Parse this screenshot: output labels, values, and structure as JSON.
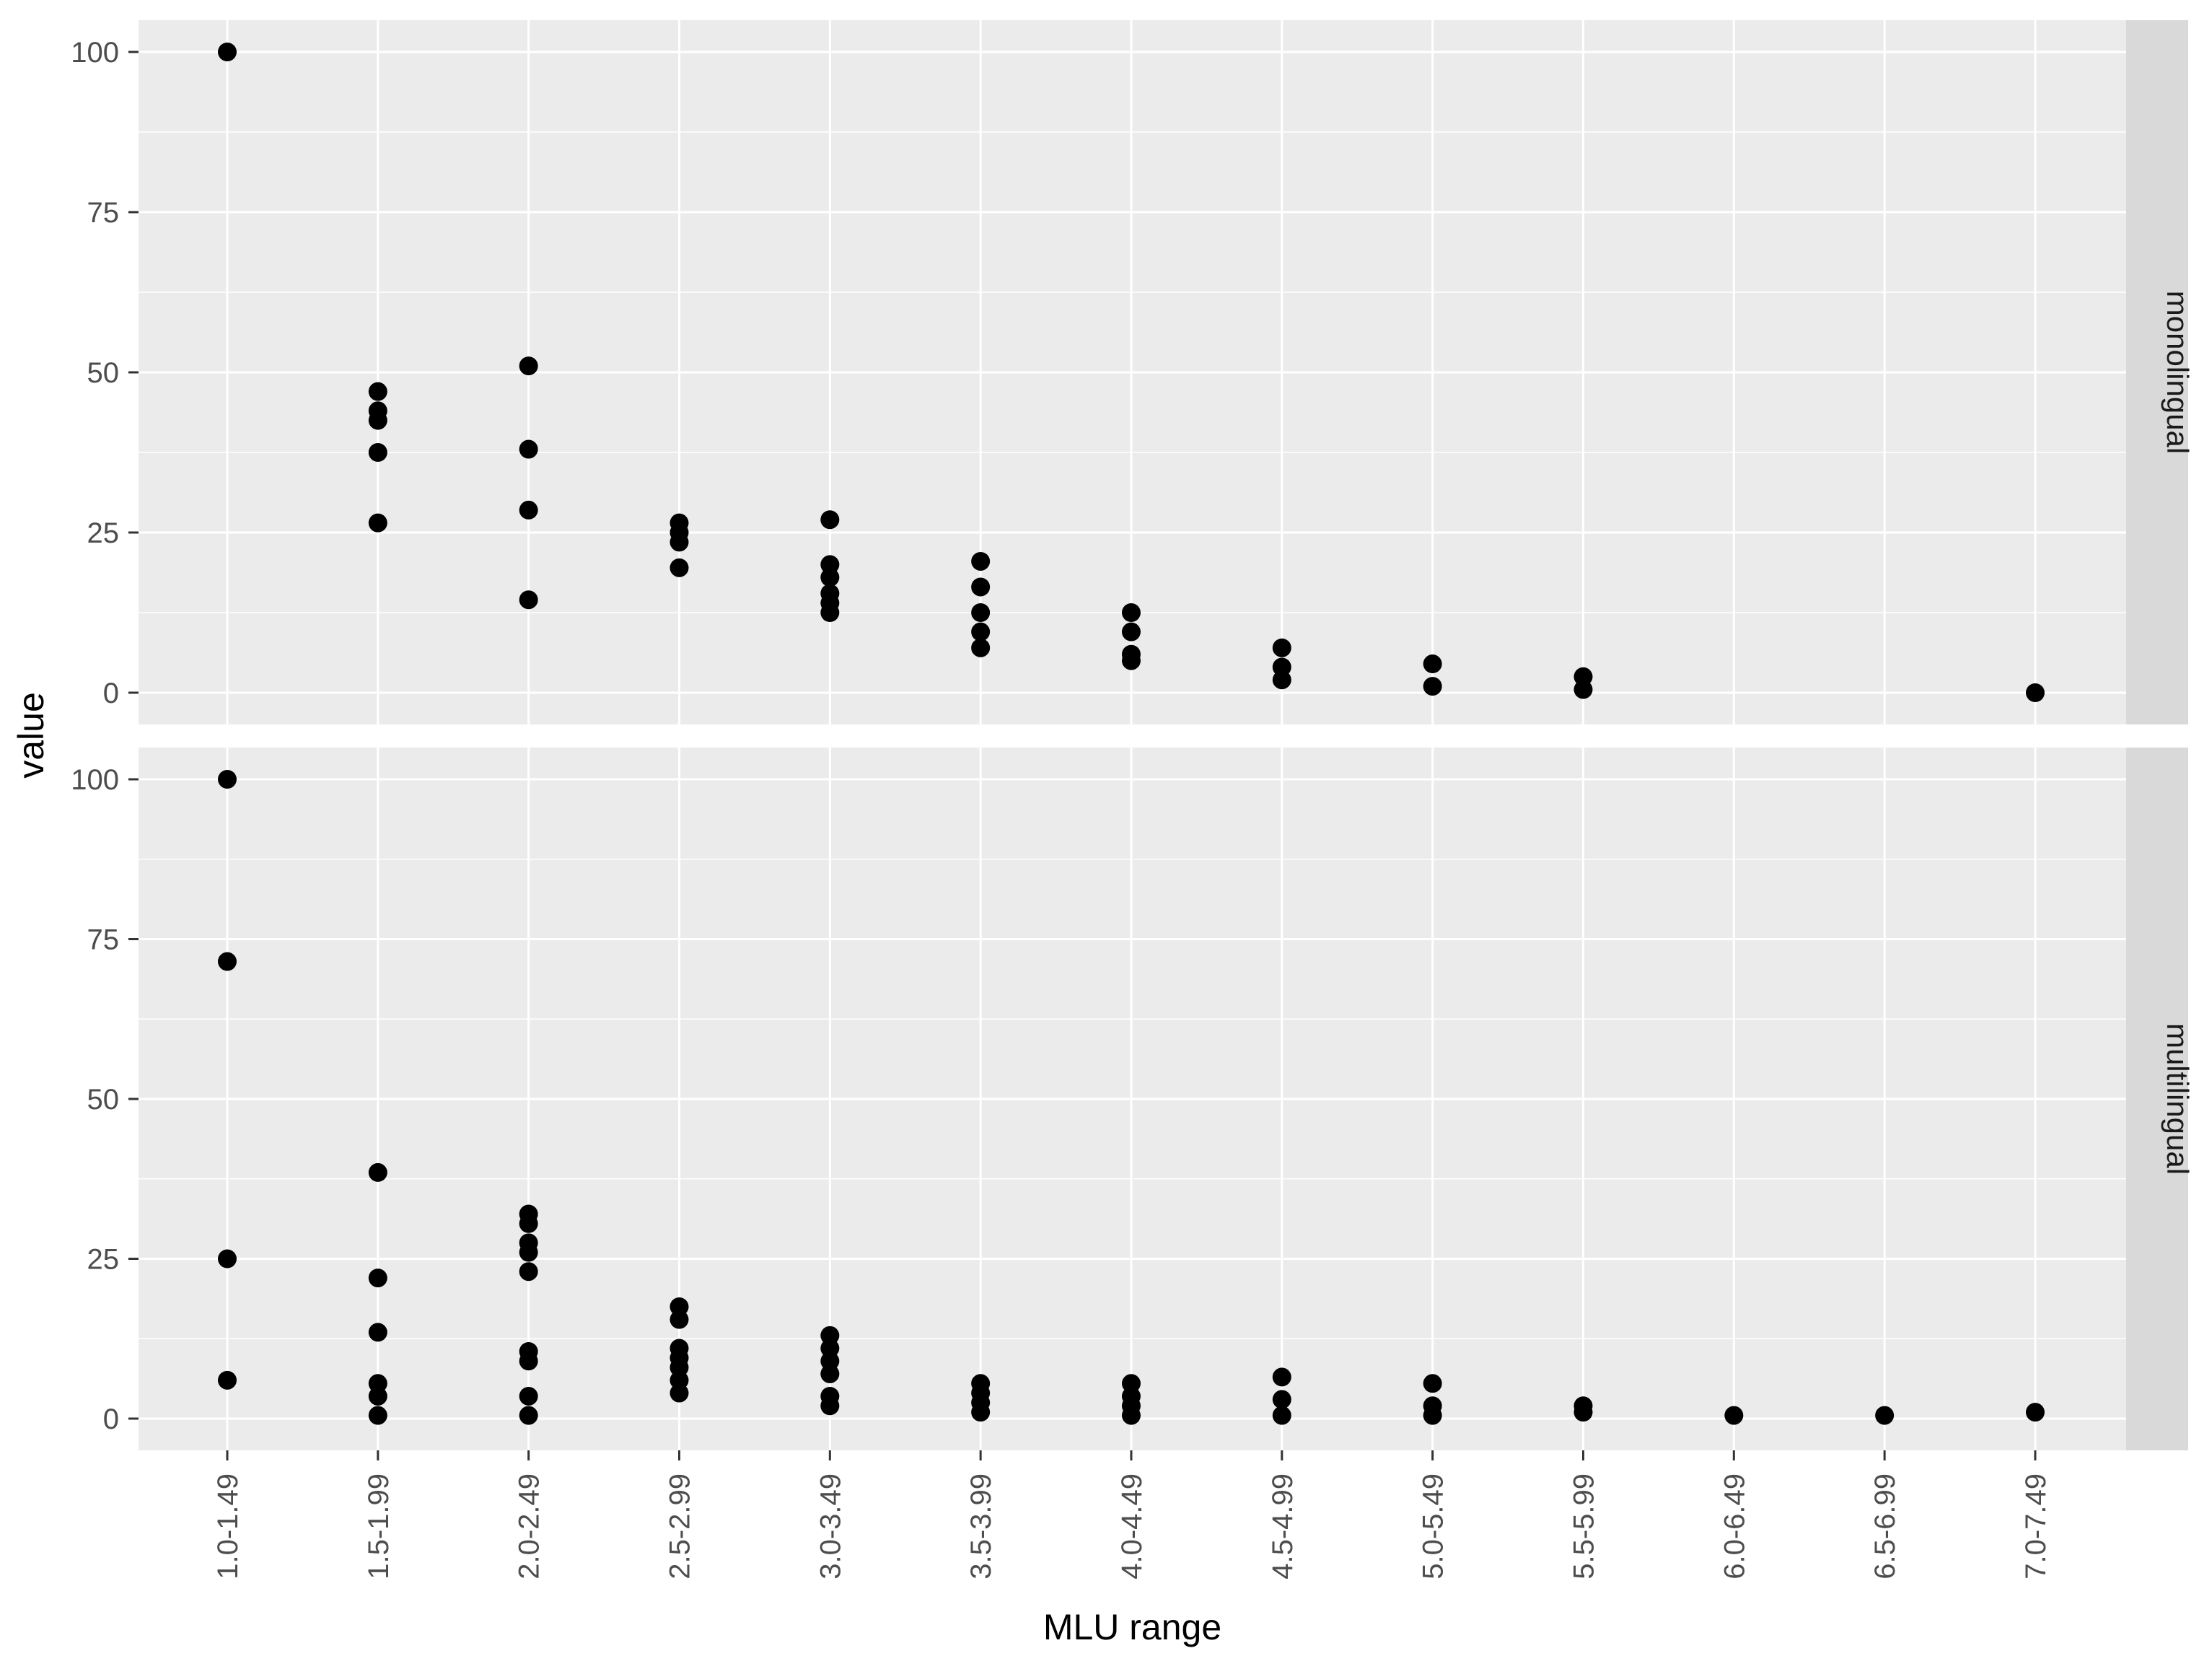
{
  "chart_data": {
    "type": "scatter",
    "title": "",
    "xlabel": "MLU range",
    "ylabel": "value",
    "categories": [
      "1.0-1.49",
      "1.5-1.99",
      "2.0-2.49",
      "2.5-2.99",
      "3.0-3.49",
      "3.5-3.99",
      "4.0-4.49",
      "4.5-4.99",
      "5.0-5.49",
      "5.5-5.99",
      "6.0-6.49",
      "6.5-6.99",
      "7.0-7.49"
    ],
    "ylim": [
      0,
      100
    ],
    "yticks": [
      0,
      25,
      50,
      75,
      100
    ],
    "ytick_labels": [
      "0",
      "25",
      "50",
      "75",
      "100"
    ],
    "grid": "white major and minor gridlines on grey panel",
    "legend": "none",
    "facet_strip_position": "right",
    "facets": [
      {
        "label": "monolingual",
        "values_by_category": [
          [
            100
          ],
          [
            47,
            44,
            42.5,
            37.5,
            26.5
          ],
          [
            51,
            38,
            28.5,
            14.5
          ],
          [
            26.5,
            25,
            23.5,
            19.5
          ],
          [
            27,
            20,
            18,
            15.5,
            14,
            12.5
          ],
          [
            20.5,
            16.5,
            12.5,
            9.5,
            7
          ],
          [
            12.5,
            9.5,
            6,
            5
          ],
          [
            7,
            4,
            2
          ],
          [
            4.5,
            1
          ],
          [
            2.5,
            0.5
          ],
          [],
          [],
          [
            0
          ]
        ]
      },
      {
        "label": "multilingual",
        "values_by_category": [
          [
            100,
            71.5,
            25,
            6
          ],
          [
            38.5,
            22,
            13.5,
            5.5,
            3.5,
            0.5
          ],
          [
            32,
            30.5,
            27.5,
            26,
            23,
            10.5,
            9,
            3.5,
            0.5
          ],
          [
            17.5,
            15.5,
            11,
            9.5,
            8,
            6,
            4
          ],
          [
            13,
            11,
            9,
            7,
            3.5,
            2
          ],
          [
            5.5,
            4,
            2.5,
            1
          ],
          [
            5.5,
            3.5,
            2,
            0.5
          ],
          [
            6.5,
            3,
            0.5
          ],
          [
            5.5,
            2,
            0.5
          ],
          [
            2,
            1
          ],
          [
            0.5
          ],
          [
            0.5
          ],
          [
            1
          ]
        ]
      }
    ],
    "colors": {
      "panel_background": "#EBEBEB",
      "gridline": "#FFFFFF",
      "strip_background": "#D9D9D9",
      "strip_text": "#1A1A1A",
      "point": "#000000",
      "tick_label": "#4D4D4D",
      "tick_mark": "#333333",
      "axis_title": "#000000",
      "figure_background": "#FFFFFF"
    }
  }
}
